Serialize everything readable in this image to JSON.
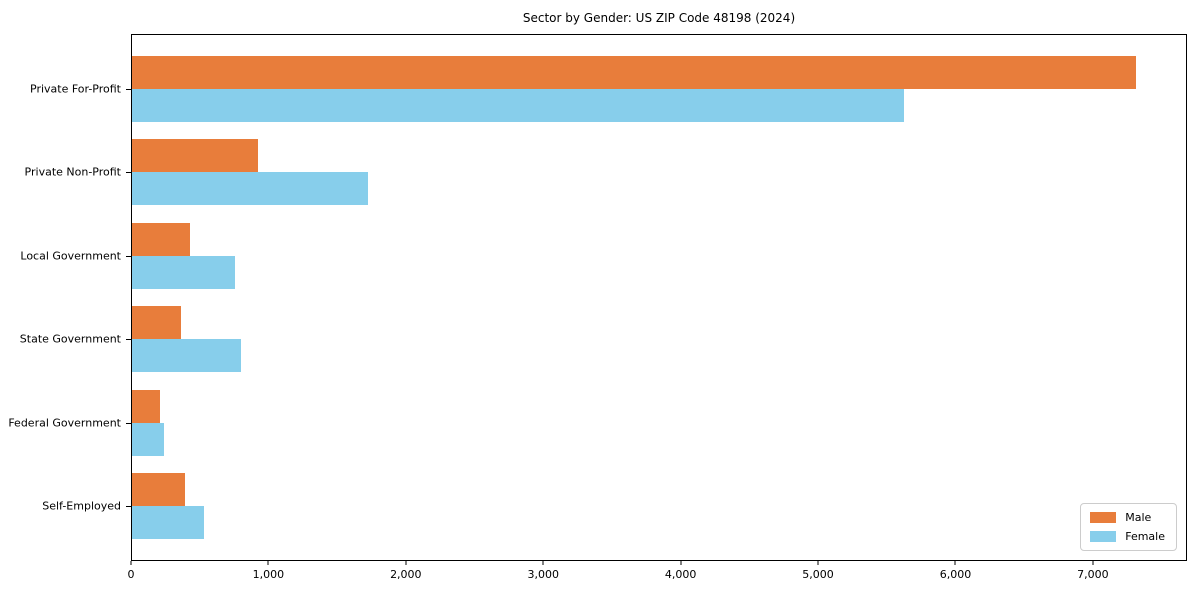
{
  "title": "Sector by Gender: US ZIP Code 48198 (2024)",
  "chart_data": {
    "type": "bar",
    "orientation": "horizontal",
    "title": "Sector by Gender: US ZIP Code 48198 (2024)",
    "xlabel": "",
    "ylabel": "",
    "categories": [
      "Private For-Profit",
      "Private Non-Profit",
      "Local Government",
      "State Government",
      "Federal Government",
      "Self-Employed"
    ],
    "series": [
      {
        "name": "Male",
        "color": "#e87d3b",
        "values": [
          7320,
          920,
          425,
          360,
          205,
          385
        ]
      },
      {
        "name": "Female",
        "color": "#87ceeb",
        "values": [
          5630,
          1720,
          750,
          795,
          235,
          525
        ]
      }
    ],
    "xlim": [
      0,
      7685
    ],
    "x_ticks": [
      0,
      1000,
      2000,
      3000,
      4000,
      5000,
      6000,
      7000
    ],
    "x_tick_labels": [
      "0",
      "1,000",
      "2,000",
      "3,000",
      "4,000",
      "5,000",
      "6,000",
      "7,000"
    ],
    "grid": false,
    "legend_position": "lower right"
  }
}
